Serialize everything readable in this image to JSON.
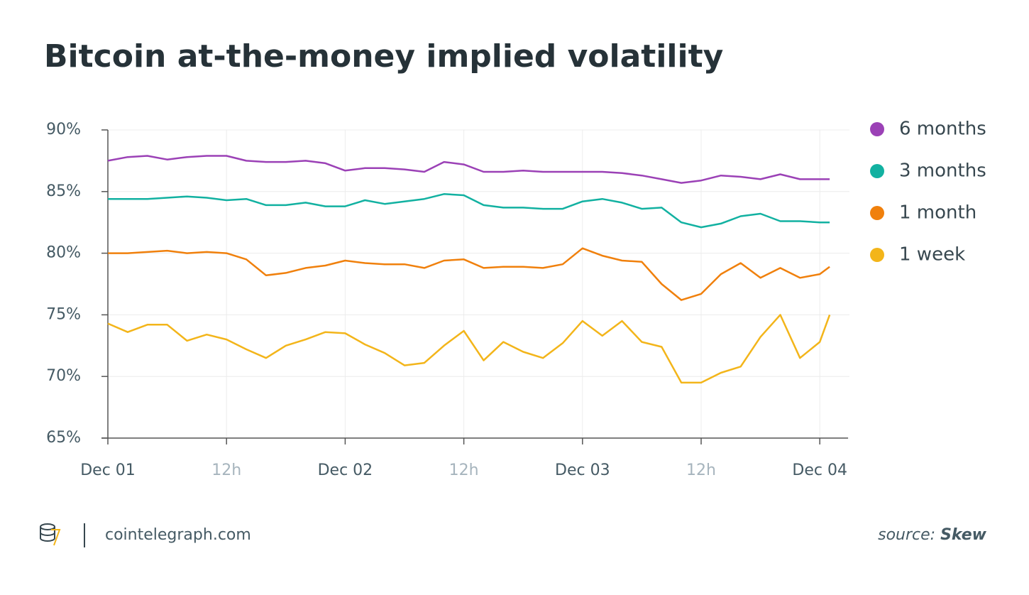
{
  "chart_data": {
    "type": "line",
    "title": "Bitcoin at-the-money implied volatility",
    "x": [
      0,
      2,
      4,
      6,
      8,
      10,
      12,
      14,
      16,
      18,
      20,
      22,
      24,
      26,
      28,
      30,
      32,
      34,
      36,
      38,
      40,
      42,
      44,
      46,
      48,
      50,
      52,
      54,
      56,
      58,
      60,
      62,
      64,
      66,
      68,
      70,
      72,
      73
    ],
    "series": [
      {
        "name": "6 months",
        "color": "#9b41b6",
        "values": [
          87.5,
          87.8,
          87.9,
          87.6,
          87.8,
          87.9,
          87.9,
          87.5,
          87.4,
          87.4,
          87.5,
          87.3,
          86.7,
          86.9,
          86.9,
          86.8,
          86.6,
          87.4,
          87.2,
          86.6,
          86.6,
          86.7,
          86.6,
          86.6,
          86.6,
          86.6,
          86.5,
          86.3,
          86.0,
          85.7,
          85.9,
          86.3,
          86.2,
          86.0,
          86.4,
          86.0,
          86.0,
          86.0
        ]
      },
      {
        "name": "3 months",
        "color": "#12b1a1",
        "values": [
          84.4,
          84.4,
          84.4,
          84.5,
          84.6,
          84.5,
          84.3,
          84.4,
          83.9,
          83.9,
          84.1,
          83.8,
          83.8,
          84.3,
          84.0,
          84.2,
          84.4,
          84.8,
          84.7,
          83.9,
          83.7,
          83.7,
          83.6,
          83.6,
          84.2,
          84.4,
          84.1,
          83.6,
          83.7,
          82.5,
          82.1,
          82.4,
          83.0,
          83.2,
          82.6,
          82.6,
          82.5,
          82.5
        ]
      },
      {
        "name": "1 month",
        "color": "#f0800c",
        "values": [
          80.0,
          80.0,
          80.1,
          80.2,
          80.0,
          80.1,
          80.0,
          79.5,
          78.2,
          78.4,
          78.8,
          79.0,
          79.4,
          79.2,
          79.1,
          79.1,
          78.8,
          79.4,
          79.5,
          78.8,
          78.9,
          78.9,
          78.8,
          79.1,
          80.4,
          79.8,
          79.4,
          79.3,
          77.5,
          76.2,
          76.7,
          78.3,
          79.2,
          78.0,
          78.8,
          78.0,
          78.3,
          78.9
        ]
      },
      {
        "name": "1 week",
        "color": "#f3b51a",
        "values": [
          74.3,
          73.6,
          74.2,
          74.2,
          72.9,
          73.4,
          73.0,
          72.2,
          71.5,
          72.5,
          73.0,
          73.6,
          73.5,
          72.6,
          71.9,
          70.9,
          71.1,
          72.5,
          73.7,
          71.3,
          72.8,
          72.0,
          71.5,
          72.7,
          74.5,
          73.3,
          74.5,
          72.8,
          72.4,
          69.5,
          69.5,
          70.3,
          70.8,
          73.2,
          75.0,
          71.5,
          72.8,
          75.0
        ]
      }
    ],
    "xlim": [
      0,
      75
    ],
    "xticks": [
      {
        "value": 0,
        "label": "Dec 01"
      },
      {
        "value": 12,
        "label": "12h"
      },
      {
        "value": 24,
        "label": "Dec 02"
      },
      {
        "value": 36,
        "label": "12h"
      },
      {
        "value": 48,
        "label": "Dec 03"
      },
      {
        "value": 60,
        "label": "12h"
      },
      {
        "value": 72,
        "label": "Dec 04"
      }
    ],
    "ylim": [
      65,
      90
    ],
    "yticks": [
      {
        "value": 65,
        "label": "65%"
      },
      {
        "value": 70,
        "label": "70%"
      },
      {
        "value": 75,
        "label": "75%"
      },
      {
        "value": 80,
        "label": "80%"
      },
      {
        "value": 85,
        "label": "85%"
      },
      {
        "value": 90,
        "label": "90%"
      }
    ],
    "grid": true,
    "legend": "right"
  },
  "footer": {
    "site": "cointelegraph.com",
    "source_label": "source:",
    "source_name": "Skew"
  }
}
